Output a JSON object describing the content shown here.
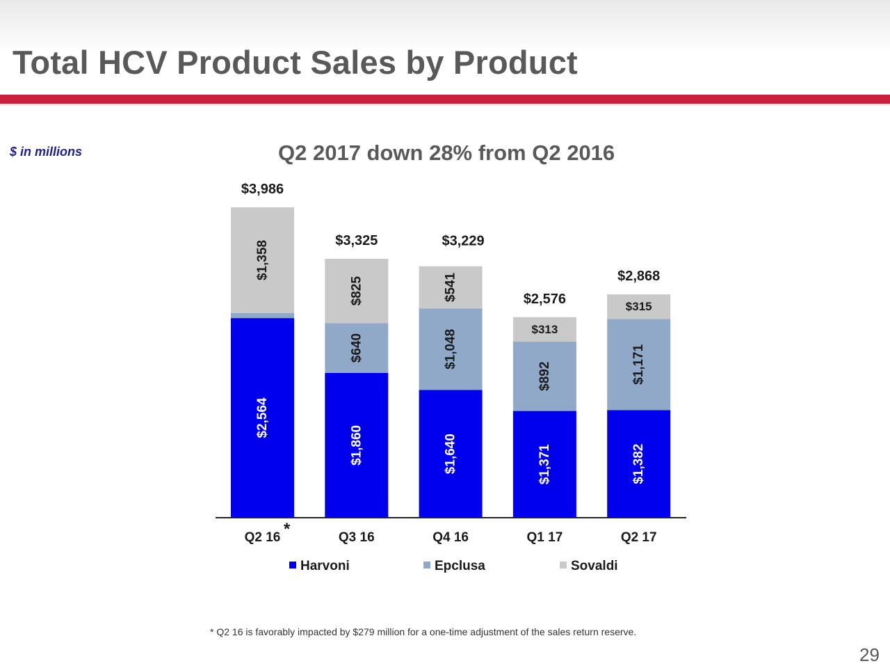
{
  "slide": {
    "title": "Total HCV Product Sales by Product",
    "units_note": "$ in millions",
    "subtitle": "Q2 2017 down 28% from Q2 2016",
    "footnote": "* Q2 16 is favorably impacted by $279 million for a one-time adjustment of the sales return reserve.",
    "page_number": "29",
    "accent_color": "#c8203e"
  },
  "chart_data": {
    "type": "bar",
    "stacked": true,
    "title": "Q2 2017 down 28% from Q2 2016",
    "xlabel": "",
    "ylabel": "",
    "ylim": [
      0,
      4300
    ],
    "grid": false,
    "legend_position": "bottom",
    "categories": [
      "Q2 16",
      "Q3 16",
      "Q4 16",
      "Q1 17",
      "Q2 17"
    ],
    "category_marks": [
      "*",
      "",
      "",
      "",
      ""
    ],
    "series": [
      {
        "name": "Harvoni",
        "color": "#0000ee",
        "values": [
          2564,
          1860,
          1640,
          1371,
          1382
        ],
        "labels": [
          "$2,564",
          "$1,860",
          "$1,640",
          "$1,371",
          "$1,382"
        ]
      },
      {
        "name": "Epclusa",
        "color": "#91a9c9",
        "values": [
          64,
          640,
          1048,
          892,
          1171
        ],
        "labels": [
          "",
          "$640",
          "$1,048",
          "$892",
          "$1,171"
        ]
      },
      {
        "name": "Sovaldi",
        "color": "#c9c9c9",
        "values": [
          1358,
          825,
          541,
          313,
          315
        ],
        "labels": [
          "$1,358",
          "$825",
          "$541",
          "$313",
          "$315"
        ]
      }
    ],
    "totals": [
      3986,
      3325,
      3229,
      2576,
      2868
    ],
    "total_labels": [
      "$3,986",
      "$3,325",
      "$3,229",
      "$2,576",
      "$2,868"
    ]
  }
}
